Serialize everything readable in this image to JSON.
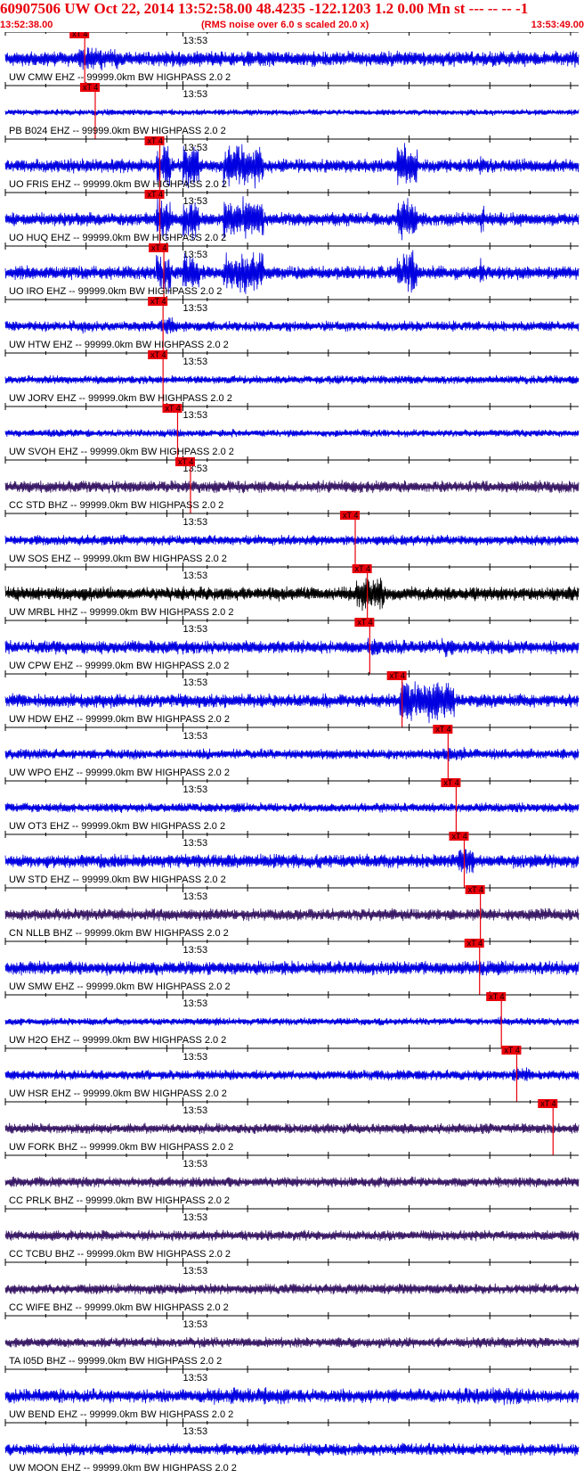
{
  "header": {
    "title": "60907506 UW Oct 22, 2014 13:52:58.00   48.4235 -122.1203  1.2 0.00 Mn st --- -- --  -1",
    "start_time": "13:52:38.00",
    "end_time": "13:53:49.00",
    "note": "(RMS noise over 6.0 s scaled 20.0 x)"
  },
  "colors": {
    "header_text": "#e8000b",
    "blue_trace": "#0000e0",
    "purple_trace": "#3a1a66",
    "black_trace": "#000000",
    "pick_box": "#e8000b",
    "pick_line": "#e8000b"
  },
  "chart_data": {
    "type": "seismogram",
    "x_axis": {
      "start_sec": 0,
      "end_sec": 71,
      "tick_minor_sec": 5,
      "tick_major_sec": 10,
      "minute_mark_sec": 22,
      "minute_label": "13:53"
    },
    "pick_label": "xT 4",
    "traces": [
      {
        "name": "UW CMW EHZ -- 99999.0km BW  HIGHPASS  2.0  2",
        "color": "blue",
        "pick_sec": 9.5,
        "amp": 0.45,
        "bursts": [
          [
            9,
            14,
            1.4
          ]
        ]
      },
      {
        "name": "PB B024 EHZ -- 99999.0km BW  HIGHPASS  2.0  2",
        "color": "blue",
        "pick_sec": 10.8,
        "amp": 0.18,
        "bursts": []
      },
      {
        "name": "UO FRIS EHZ -- 99999.0km BW  HIGHPASS  2.0  2",
        "color": "blue",
        "pick_sec": 18.8,
        "amp": 0.4,
        "bursts": [
          [
            18.7,
            20.5,
            3
          ],
          [
            22,
            24,
            3
          ],
          [
            27,
            32,
            3
          ],
          [
            48.5,
            51,
            3
          ],
          [
            58.8,
            59.3,
            2
          ]
        ]
      },
      {
        "name": "UO HUQ EHZ -- 99999.0km BW  HIGHPASS  2.0  2",
        "color": "blue",
        "pick_sec": 18.8,
        "amp": 0.4,
        "bursts": [
          [
            18.7,
            20.5,
            3
          ],
          [
            22,
            24,
            3
          ],
          [
            27,
            32,
            3
          ],
          [
            48.5,
            51,
            3
          ],
          [
            58.8,
            59.3,
            2
          ]
        ]
      },
      {
        "name": "UO IRO EHZ -- 99999.0km BW  HIGHPASS  2.0  2",
        "color": "blue",
        "pick_sec": 19.3,
        "amp": 0.4,
        "bursts": [
          [
            18.7,
            20.5,
            3
          ],
          [
            22,
            24,
            3
          ],
          [
            27,
            32,
            3
          ],
          [
            48.5,
            51,
            3
          ],
          [
            58.8,
            59.3,
            2
          ]
        ]
      },
      {
        "name": "UW HTW EHZ -- 99999.0km BW  HIGHPASS  2.0  2",
        "color": "blue",
        "pick_sec": 19.2,
        "amp": 0.3,
        "bursts": [
          [
            8,
            10,
            1.3
          ],
          [
            19,
            21,
            1.6
          ]
        ]
      },
      {
        "name": "UW JORV EHZ -- 99999.0km BW  HIGHPASS  2.0  2",
        "color": "blue",
        "pick_sec": 19.2,
        "amp": 0.25,
        "bursts": [
          [
            40,
            41,
            1.0
          ]
        ]
      },
      {
        "name": "UW SVOH EHZ -- 99999.0km BW  HIGHPASS  2.0  2",
        "color": "blue",
        "pick_sec": 21.0,
        "amp": 0.22,
        "bursts": [
          [
            20.8,
            22,
            1.2
          ]
        ]
      },
      {
        "name": "CC STD BHZ -- 99999.0km BW  HIGHPASS  2.0  2",
        "color": "purple",
        "pick_sec": 22.6,
        "amp": 0.35,
        "bursts": [
          [
            22.5,
            25,
            1.0
          ]
        ]
      },
      {
        "name": "UW SOS EHZ -- 99999.0km BW  HIGHPASS  2.0  2",
        "color": "blue",
        "pick_sec": 43.0,
        "amp": 0.3,
        "bursts": [
          [
            43,
            60,
            0.9
          ]
        ]
      },
      {
        "name": "UW MRBL HHZ -- 99999.0km BW  HIGHPASS  2.0  2",
        "color": "black",
        "pick_sec": 44.5,
        "amp": 0.4,
        "bursts": [
          [
            43.5,
            47,
            2.4
          ]
        ]
      },
      {
        "name": "UW CPW EHZ -- 99999.0km BW  HIGHPASS  2.0  2",
        "color": "blue",
        "pick_sec": 44.8,
        "amp": 0.4,
        "bursts": [
          [
            44.8,
            46.5,
            1.5
          ],
          [
            54,
            55.5,
            1.5
          ]
        ]
      },
      {
        "name": "UW HDW EHZ -- 99999.0km BW  HIGHPASS  2.0  2",
        "color": "blue",
        "pick_sec": 48.8,
        "amp": 0.4,
        "bursts": [
          [
            48.8,
            55.6,
            3
          ]
        ]
      },
      {
        "name": "UW WPO EHZ -- 99999.0km BW  HIGHPASS  2.0  2",
        "color": "blue",
        "pick_sec": 54.5,
        "amp": 0.3,
        "bursts": [
          [
            54.3,
            57,
            1.4
          ]
        ]
      },
      {
        "name": "UW OT3 EHZ -- 99999.0km BW  HIGHPASS  2.0  2",
        "color": "blue",
        "pick_sec": 55.5,
        "amp": 0.28,
        "bursts": []
      },
      {
        "name": "UW STD EHZ -- 99999.0km BW  HIGHPASS  2.0  2",
        "color": "blue",
        "pick_sec": 56.5,
        "amp": 0.4,
        "bursts": [
          [
            20,
            35,
            1.0
          ],
          [
            37,
            45,
            1.0
          ],
          [
            50,
            62,
            1.0
          ],
          [
            56,
            58,
            1.8
          ]
        ]
      },
      {
        "name": "CN NLLB BHZ -- 99999.0km BW  HIGHPASS  2.0  2",
        "color": "purple",
        "pick_sec": 58.5,
        "amp": 0.35,
        "bursts": [
          [
            68,
            71,
            1.0
          ]
        ]
      },
      {
        "name": "UW SMW EHZ -- 99999.0km BW  HIGHPASS  2.0  2",
        "color": "blue",
        "pick_sec": 58.4,
        "amp": 0.4,
        "bursts": [
          [
            58.3,
            62,
            1.2
          ]
        ]
      },
      {
        "name": "UW H2O EHZ -- 99999.0km BW  HIGHPASS  2.0  2",
        "color": "blue",
        "pick_sec": 61.1,
        "amp": 0.22,
        "bursts": [
          [
            61,
            62.5,
            1.2
          ]
        ]
      },
      {
        "name": "UW HSR EHZ -- 99999.0km BW  HIGHPASS  2.0  2",
        "color": "blue",
        "pick_sec": 63.0,
        "amp": 0.3,
        "bursts": [
          [
            62.8,
            65,
            1.4
          ]
        ]
      },
      {
        "name": "UW FORK BHZ -- 99999.0km BW  HIGHPASS  2.0  2",
        "color": "purple",
        "pick_sec": 67.5,
        "amp": 0.3,
        "bursts": []
      },
      {
        "name": "CC PRLK BHZ -- 99999.0km BW  HIGHPASS  2.0  2",
        "color": "purple",
        "pick_sec": null,
        "amp": 0.3,
        "bursts": []
      },
      {
        "name": "CC TCBU BHZ -- 99999.0km BW  HIGHPASS  2.0  2",
        "color": "purple",
        "pick_sec": null,
        "amp": 0.3,
        "bursts": []
      },
      {
        "name": "CC WIFE BHZ -- 99999.0km BW  HIGHPASS  2.0  2",
        "color": "purple",
        "pick_sec": null,
        "amp": 0.3,
        "bursts": []
      },
      {
        "name": "TA I05D BHZ -- 99999.0km BW  HIGHPASS  2.0  2",
        "color": "purple",
        "pick_sec": null,
        "amp": 0.3,
        "bursts": []
      },
      {
        "name": "UW BEND EHZ -- 99999.0km BW  HIGHPASS  2.0  2",
        "color": "blue",
        "pick_sec": null,
        "amp": 0.4,
        "bursts": [
          [
            25,
            37,
            1.2
          ],
          [
            56,
            65,
            1.2
          ]
        ]
      },
      {
        "name": "UW MOON EHZ -- 99999.0km BW  HIGHPASS  2.0  2",
        "color": "blue",
        "pick_sec": null,
        "amp": 0.35,
        "bursts": []
      }
    ]
  }
}
